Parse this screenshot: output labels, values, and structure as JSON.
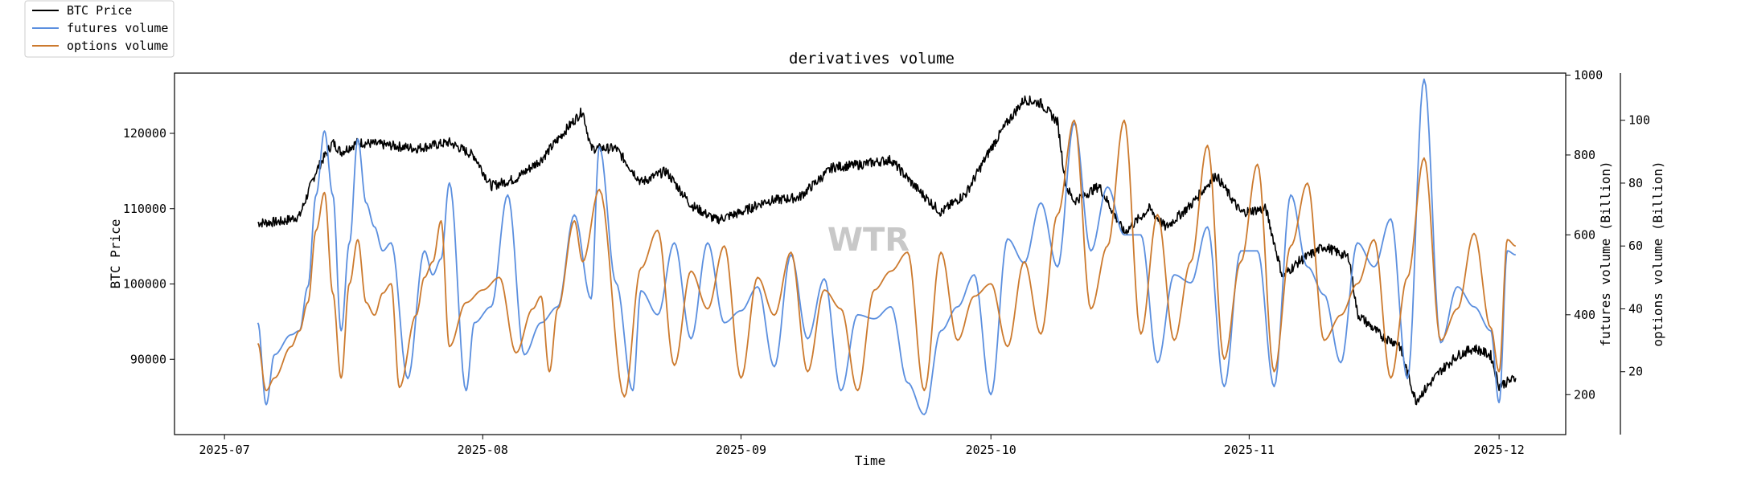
{
  "chart_data": {
    "type": "line",
    "title": "derivatives volume",
    "xlabel": "Time",
    "ylabel_left": "BTC Price",
    "ylabel_right1": "futures volume (Billion)",
    "ylabel_right2": "options volume (Billion)",
    "watermark": "WTR",
    "x_ticks": [
      "2025-07",
      "2025-08",
      "2025-09",
      "2025-10",
      "2025-11",
      "2025-12"
    ],
    "x_range": [
      "2025-06-25",
      "2025-12-09"
    ],
    "axes": {
      "price": {
        "ticks": [
          90000,
          100000,
          110000,
          120000
        ],
        "range": [
          80000,
          128000
        ]
      },
      "futures": {
        "ticks": [
          200,
          400,
          600,
          800,
          1000
        ],
        "range": [
          100,
          1005
        ]
      },
      "options": {
        "ticks": [
          20,
          40,
          60,
          80,
          100
        ],
        "range": [
          0,
          115
        ]
      }
    },
    "legend": {
      "position": "top-left",
      "entries": [
        "BTC Price",
        "futures volume",
        "options volume"
      ]
    },
    "series": [
      {
        "name": "BTC Price",
        "color": "#000000",
        "axis": "price",
        "points": [
          [
            "2025-07-05",
            108100
          ],
          [
            "2025-07-08",
            108300
          ],
          [
            "2025-07-10",
            109000
          ],
          [
            "2025-07-12",
            115000
          ],
          [
            "2025-07-14",
            118800
          ],
          [
            "2025-07-15",
            117500
          ],
          [
            "2025-07-17",
            118800
          ],
          [
            "2025-07-20",
            118500
          ],
          [
            "2025-07-24",
            118000
          ],
          [
            "2025-07-28",
            118800
          ],
          [
            "2025-07-31",
            117000
          ],
          [
            "2025-08-02",
            113000
          ],
          [
            "2025-08-05",
            114000
          ],
          [
            "2025-08-08",
            116500
          ],
          [
            "2025-08-11",
            120500
          ],
          [
            "2025-08-13",
            123000
          ],
          [
            "2025-08-14",
            118000
          ],
          [
            "2025-08-17",
            118000
          ],
          [
            "2025-08-20",
            113500
          ],
          [
            "2025-08-23",
            115000
          ],
          [
            "2025-08-26",
            110500
          ],
          [
            "2025-08-29",
            108500
          ],
          [
            "2025-09-01",
            109500
          ],
          [
            "2025-09-04",
            111000
          ],
          [
            "2025-09-08",
            111500
          ],
          [
            "2025-09-12",
            115500
          ],
          [
            "2025-09-15",
            115800
          ],
          [
            "2025-09-19",
            116500
          ],
          [
            "2025-09-22",
            112800
          ],
          [
            "2025-09-25",
            109500
          ],
          [
            "2025-09-28",
            112000
          ],
          [
            "2025-10-01",
            118000
          ],
          [
            "2025-10-03",
            121500
          ],
          [
            "2025-10-05",
            124500
          ],
          [
            "2025-10-07",
            124000
          ],
          [
            "2025-10-09",
            121500
          ],
          [
            "2025-10-10",
            113000
          ],
          [
            "2025-10-11",
            111000
          ],
          [
            "2025-10-14",
            113000
          ],
          [
            "2025-10-17",
            106800
          ],
          [
            "2025-10-20",
            110000
          ],
          [
            "2025-10-22",
            107500
          ],
          [
            "2025-10-25",
            110500
          ],
          [
            "2025-10-28",
            114500
          ],
          [
            "2025-10-31",
            109500
          ],
          [
            "2025-11-03",
            110000
          ],
          [
            "2025-11-05",
            101000
          ],
          [
            "2025-11-07",
            103000
          ],
          [
            "2025-11-10",
            105000
          ],
          [
            "2025-11-13",
            103500
          ],
          [
            "2025-11-14",
            96000
          ],
          [
            "2025-11-17",
            93000
          ],
          [
            "2025-11-19",
            92000
          ],
          [
            "2025-11-21",
            84500
          ],
          [
            "2025-11-24",
            88500
          ],
          [
            "2025-11-26",
            90500
          ],
          [
            "2025-11-28",
            91500
          ],
          [
            "2025-11-30",
            90500
          ],
          [
            "2025-12-01",
            86500
          ],
          [
            "2025-12-03",
            87500
          ]
        ]
      },
      {
        "name": "futures volume",
        "color": "#5b8fdf",
        "axis": "futures",
        "points": [
          [
            "2025-07-05",
            380
          ],
          [
            "2025-07-06",
            175
          ],
          [
            "2025-07-07",
            300
          ],
          [
            "2025-07-09",
            350
          ],
          [
            "2025-07-10",
            360
          ],
          [
            "2025-07-11",
            470
          ],
          [
            "2025-07-12",
            700
          ],
          [
            "2025-07-13",
            860
          ],
          [
            "2025-07-14",
            700
          ],
          [
            "2025-07-15",
            360
          ],
          [
            "2025-07-16",
            580
          ],
          [
            "2025-07-17",
            840
          ],
          [
            "2025-07-18",
            680
          ],
          [
            "2025-07-19",
            620
          ],
          [
            "2025-07-20",
            560
          ],
          [
            "2025-07-21",
            580
          ],
          [
            "2025-07-23",
            240
          ],
          [
            "2025-07-25",
            560
          ],
          [
            "2025-07-26",
            500
          ],
          [
            "2025-07-27",
            540
          ],
          [
            "2025-07-28",
            730
          ],
          [
            "2025-07-30",
            210
          ],
          [
            "2025-07-31",
            380
          ],
          [
            "2025-08-02",
            420
          ],
          [
            "2025-08-04",
            700
          ],
          [
            "2025-08-06",
            300
          ],
          [
            "2025-08-08",
            380
          ],
          [
            "2025-08-10",
            420
          ],
          [
            "2025-08-12",
            650
          ],
          [
            "2025-08-14",
            440
          ],
          [
            "2025-08-15",
            820
          ],
          [
            "2025-08-17",
            480
          ],
          [
            "2025-08-19",
            210
          ],
          [
            "2025-08-20",
            460
          ],
          [
            "2025-08-22",
            400
          ],
          [
            "2025-08-24",
            580
          ],
          [
            "2025-08-26",
            340
          ],
          [
            "2025-08-28",
            580
          ],
          [
            "2025-08-30",
            380
          ],
          [
            "2025-09-01",
            410
          ],
          [
            "2025-09-03",
            470
          ],
          [
            "2025-09-05",
            270
          ],
          [
            "2025-09-07",
            550
          ],
          [
            "2025-09-09",
            340
          ],
          [
            "2025-09-11",
            490
          ],
          [
            "2025-09-13",
            210
          ],
          [
            "2025-09-15",
            400
          ],
          [
            "2025-09-17",
            390
          ],
          [
            "2025-09-19",
            420
          ],
          [
            "2025-09-21",
            230
          ],
          [
            "2025-09-23",
            150
          ],
          [
            "2025-09-25",
            360
          ],
          [
            "2025-09-27",
            420
          ],
          [
            "2025-09-29",
            500
          ],
          [
            "2025-10-01",
            200
          ],
          [
            "2025-10-03",
            590
          ],
          [
            "2025-10-05",
            530
          ],
          [
            "2025-10-07",
            680
          ],
          [
            "2025-10-09",
            520
          ],
          [
            "2025-10-11",
            880
          ],
          [
            "2025-10-13",
            560
          ],
          [
            "2025-10-15",
            720
          ],
          [
            "2025-10-17",
            600
          ],
          [
            "2025-10-19",
            600
          ],
          [
            "2025-10-21",
            280
          ],
          [
            "2025-10-23",
            500
          ],
          [
            "2025-10-25",
            480
          ],
          [
            "2025-10-27",
            620
          ],
          [
            "2025-10-29",
            220
          ],
          [
            "2025-10-31",
            560
          ],
          [
            "2025-11-02",
            560
          ],
          [
            "2025-11-04",
            220
          ],
          [
            "2025-11-06",
            700
          ],
          [
            "2025-11-08",
            520
          ],
          [
            "2025-11-10",
            450
          ],
          [
            "2025-11-12",
            280
          ],
          [
            "2025-11-14",
            580
          ],
          [
            "2025-11-16",
            520
          ],
          [
            "2025-11-18",
            640
          ],
          [
            "2025-11-20",
            240
          ],
          [
            "2025-11-22",
            990
          ],
          [
            "2025-11-24",
            330
          ],
          [
            "2025-11-26",
            470
          ],
          [
            "2025-11-28",
            420
          ],
          [
            "2025-11-30",
            360
          ],
          [
            "2025-12-01",
            180
          ],
          [
            "2025-12-02",
            560
          ],
          [
            "2025-12-03",
            550
          ]
        ]
      },
      {
        "name": "options volume",
        "color": "#cc7a2e",
        "axis": "options",
        "points": [
          [
            "2025-07-05",
            29
          ],
          [
            "2025-07-06",
            14
          ],
          [
            "2025-07-07",
            18
          ],
          [
            "2025-07-09",
            28
          ],
          [
            "2025-07-10",
            33
          ],
          [
            "2025-07-11",
            42
          ],
          [
            "2025-07-12",
            65
          ],
          [
            "2025-07-13",
            77
          ],
          [
            "2025-07-14",
            45
          ],
          [
            "2025-07-15",
            18
          ],
          [
            "2025-07-16",
            48
          ],
          [
            "2025-07-17",
            62
          ],
          [
            "2025-07-18",
            42
          ],
          [
            "2025-07-19",
            38
          ],
          [
            "2025-07-20",
            45
          ],
          [
            "2025-07-21",
            48
          ],
          [
            "2025-07-22",
            15
          ],
          [
            "2025-07-24",
            38
          ],
          [
            "2025-07-25",
            50
          ],
          [
            "2025-07-26",
            55
          ],
          [
            "2025-07-27",
            68
          ],
          [
            "2025-07-28",
            28
          ],
          [
            "2025-07-30",
            42
          ],
          [
            "2025-08-01",
            46
          ],
          [
            "2025-08-03",
            50
          ],
          [
            "2025-08-05",
            26
          ],
          [
            "2025-08-07",
            40
          ],
          [
            "2025-08-08",
            44
          ],
          [
            "2025-08-09",
            20
          ],
          [
            "2025-08-10",
            40
          ],
          [
            "2025-08-12",
            68
          ],
          [
            "2025-08-13",
            55
          ],
          [
            "2025-08-15",
            78
          ],
          [
            "2025-08-18",
            12
          ],
          [
            "2025-08-20",
            53
          ],
          [
            "2025-08-22",
            65
          ],
          [
            "2025-08-24",
            22
          ],
          [
            "2025-08-26",
            52
          ],
          [
            "2025-08-28",
            40
          ],
          [
            "2025-08-30",
            60
          ],
          [
            "2025-09-01",
            18
          ],
          [
            "2025-09-03",
            50
          ],
          [
            "2025-09-05",
            38
          ],
          [
            "2025-09-07",
            58
          ],
          [
            "2025-09-09",
            20
          ],
          [
            "2025-09-11",
            46
          ],
          [
            "2025-09-13",
            40
          ],
          [
            "2025-09-15",
            14
          ],
          [
            "2025-09-17",
            46
          ],
          [
            "2025-09-19",
            52
          ],
          [
            "2025-09-21",
            58
          ],
          [
            "2025-09-23",
            14
          ],
          [
            "2025-09-25",
            58
          ],
          [
            "2025-09-27",
            30
          ],
          [
            "2025-09-29",
            44
          ],
          [
            "2025-10-01",
            48
          ],
          [
            "2025-10-03",
            28
          ],
          [
            "2025-10-05",
            55
          ],
          [
            "2025-10-07",
            32
          ],
          [
            "2025-10-09",
            70
          ],
          [
            "2025-10-11",
            100
          ],
          [
            "2025-10-13",
            40
          ],
          [
            "2025-10-15",
            60
          ],
          [
            "2025-10-17",
            100
          ],
          [
            "2025-10-19",
            32
          ],
          [
            "2025-10-21",
            70
          ],
          [
            "2025-10-23",
            30
          ],
          [
            "2025-10-25",
            55
          ],
          [
            "2025-10-27",
            92
          ],
          [
            "2025-10-29",
            24
          ],
          [
            "2025-10-31",
            55
          ],
          [
            "2025-11-02",
            86
          ],
          [
            "2025-11-04",
            20
          ],
          [
            "2025-11-06",
            60
          ],
          [
            "2025-11-08",
            80
          ],
          [
            "2025-11-10",
            30
          ],
          [
            "2025-11-12",
            38
          ],
          [
            "2025-11-14",
            48
          ],
          [
            "2025-11-16",
            62
          ],
          [
            "2025-11-18",
            18
          ],
          [
            "2025-11-20",
            50
          ],
          [
            "2025-11-22",
            88
          ],
          [
            "2025-11-24",
            30
          ],
          [
            "2025-11-26",
            40
          ],
          [
            "2025-11-28",
            64
          ],
          [
            "2025-11-30",
            34
          ],
          [
            "2025-12-01",
            20
          ],
          [
            "2025-12-02",
            62
          ],
          [
            "2025-12-03",
            60
          ]
        ]
      }
    ]
  }
}
